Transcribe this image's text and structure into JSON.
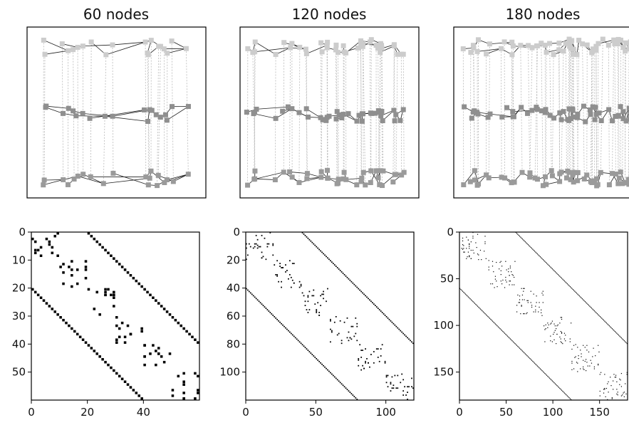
{
  "panels": [
    {
      "title": "60 nodes",
      "n": 60,
      "layers": 3,
      "ticks": [
        0,
        20,
        40
      ],
      "yticks": [
        0,
        10,
        20,
        30,
        40,
        50
      ],
      "layer_colors": [
        "#cccccc",
        "#8f8f8f",
        "#9a9a9a"
      ]
    },
    {
      "title": "120 nodes",
      "n": 120,
      "layers": 3,
      "ticks": [
        0,
        50,
        100
      ],
      "yticks": [
        0,
        20,
        40,
        60,
        80,
        100
      ],
      "layer_colors": [
        "#cccccc",
        "#8f8f8f",
        "#9a9a9a"
      ]
    },
    {
      "title": "180 nodes",
      "n": 180,
      "layers": 3,
      "ticks": [
        0,
        50,
        100,
        150
      ],
      "yticks": [
        0,
        50,
        100,
        150
      ],
      "layer_colors": [
        "#cccccc",
        "#8f8f8f",
        "#9a9a9a"
      ]
    }
  ]
}
